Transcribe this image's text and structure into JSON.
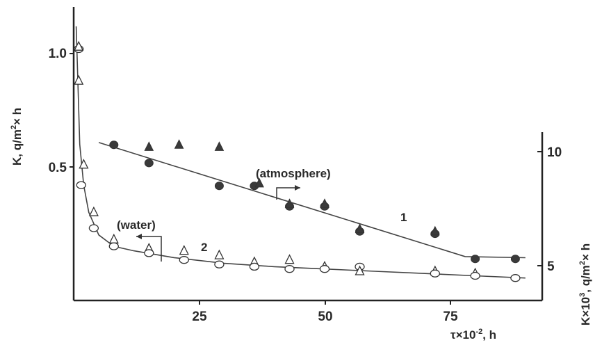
{
  "chart_data": {
    "type": "scatter",
    "xlabel": "τ×10-2, h",
    "ylabel_left": "K, q/m2× h",
    "ylabel_right": "K×103, q/m2× h",
    "xlim": [
      0,
      95
    ],
    "ylim_left": [
      0,
      1.15
    ],
    "ylim_right": [
      4.2,
      11.1
    ],
    "x_ticks": [
      25,
      50,
      75
    ],
    "y_ticks_left": [
      0.5,
      1.0
    ],
    "y_ticks_right": [
      5,
      10
    ],
    "annotations": {
      "atmosphere": "(atmosphere)",
      "water": "(water)",
      "curve1": "1",
      "curve2": "2"
    },
    "series": [
      {
        "name": "",
        "axis": "right",
        "medium": "atmosphere",
        "points": [
          {
            "x": 8,
            "y": 10.3,
            "marker": "circle"
          },
          {
            "x": 15,
            "y": 10.2,
            "marker": "triangle"
          },
          {
            "x": 21,
            "y": 10.3,
            "marker": "triangle"
          },
          {
            "x": 29,
            "y": 10.2,
            "marker": "triangle"
          },
          {
            "x": 15,
            "y": 9.5,
            "marker": "circle"
          },
          {
            "x": 29,
            "y": 8.5,
            "marker": "circle"
          },
          {
            "x": 36,
            "y": 8.5,
            "marker": "circle"
          },
          {
            "x": 37,
            "y": 8.6,
            "marker": "triangle"
          },
          {
            "x": 43,
            "y": 7.6,
            "marker": "circle"
          },
          {
            "x": 43,
            "y": 7.7,
            "marker": "triangle"
          },
          {
            "x": 50,
            "y": 7.6,
            "marker": "circle"
          },
          {
            "x": 50,
            "y": 7.7,
            "marker": "triangle"
          },
          {
            "x": 57,
            "y": 6.5,
            "marker": "circle"
          },
          {
            "x": 57,
            "y": 6.6,
            "marker": "triangle"
          },
          {
            "x": 72,
            "y": 6.4,
            "marker": "circle"
          },
          {
            "x": 72,
            "y": 6.5,
            "marker": "triangle"
          },
          {
            "x": 80,
            "y": 5.3,
            "marker": "circle"
          },
          {
            "x": 88,
            "y": 5.3,
            "marker": "circle"
          }
        ],
        "fit_line": [
          [
            5,
            10.4
          ],
          [
            78,
            5.4
          ],
          [
            90,
            5.35
          ]
        ]
      },
      {
        "name": "",
        "axis": "left",
        "medium": "water",
        "points": [
          {
            "x": 1,
            "y": 1.02,
            "marker": "circle"
          },
          {
            "x": 1,
            "y": 1.03,
            "marker": "triangle"
          },
          {
            "x": 1,
            "y": 0.88,
            "marker": "triangle"
          },
          {
            "x": 2,
            "y": 0.51,
            "marker": "triangle"
          },
          {
            "x": 1.5,
            "y": 0.42,
            "marker": "circle"
          },
          {
            "x": 4,
            "y": 0.3,
            "marker": "triangle"
          },
          {
            "x": 4,
            "y": 0.23,
            "marker": "circle"
          },
          {
            "x": 8,
            "y": 0.18,
            "marker": "triangle"
          },
          {
            "x": 8,
            "y": 0.15,
            "marker": "circle"
          },
          {
            "x": 15,
            "y": 0.14,
            "marker": "triangle"
          },
          {
            "x": 15,
            "y": 0.12,
            "marker": "circle"
          },
          {
            "x": 22,
            "y": 0.13,
            "marker": "triangle"
          },
          {
            "x": 22,
            "y": 0.09,
            "marker": "circle"
          },
          {
            "x": 29,
            "y": 0.11,
            "marker": "triangle"
          },
          {
            "x": 29,
            "y": 0.07,
            "marker": "circle"
          },
          {
            "x": 36,
            "y": 0.08,
            "marker": "triangle"
          },
          {
            "x": 36,
            "y": 0.06,
            "marker": "circle"
          },
          {
            "x": 43,
            "y": 0.09,
            "marker": "triangle"
          },
          {
            "x": 43,
            "y": 0.05,
            "marker": "circle"
          },
          {
            "x": 50,
            "y": 0.06,
            "marker": "triangle"
          },
          {
            "x": 50,
            "y": 0.05,
            "marker": "circle"
          },
          {
            "x": 57,
            "y": 0.06,
            "marker": "circle"
          },
          {
            "x": 57,
            "y": 0.04,
            "marker": "triangle"
          },
          {
            "x": 72,
            "y": 0.04,
            "marker": "triangle"
          },
          {
            "x": 72,
            "y": 0.03,
            "marker": "circle"
          },
          {
            "x": 80,
            "y": 0.03,
            "marker": "triangle"
          },
          {
            "x": 80,
            "y": 0.02,
            "marker": "circle"
          },
          {
            "x": 88,
            "y": 0.01,
            "marker": "circle"
          }
        ],
        "fit_line": [
          [
            0.5,
            1.12
          ],
          [
            0.8,
            0.9
          ],
          [
            1.2,
            0.6
          ],
          [
            2,
            0.42
          ],
          [
            3,
            0.3
          ],
          [
            5,
            0.2
          ],
          [
            8,
            0.15
          ],
          [
            12,
            0.13
          ],
          [
            20,
            0.1
          ],
          [
            30,
            0.075
          ],
          [
            40,
            0.06
          ],
          [
            50,
            0.05
          ],
          [
            60,
            0.04
          ],
          [
            70,
            0.03
          ],
          [
            80,
            0.02
          ],
          [
            90,
            0.01
          ]
        ]
      }
    ]
  }
}
